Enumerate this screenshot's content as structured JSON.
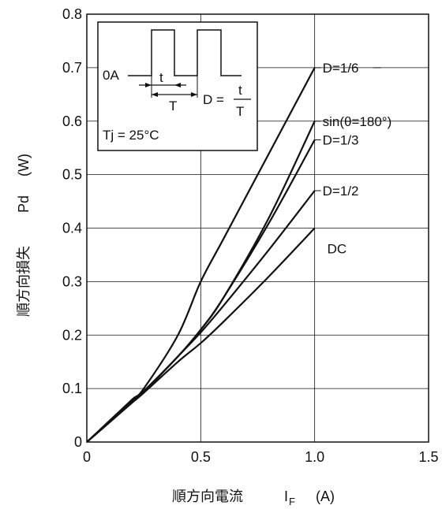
{
  "chart_data": {
    "type": "line",
    "xlabel": "順方向電流",
    "xlabel_symbol": "I",
    "xlabel_sub": "F",
    "xlabel_unit": "(A)",
    "ylabel": "順方向損失",
    "ylabel_symbol": "Pd",
    "ylabel_unit": "(W)",
    "xlim": [
      0,
      1.5
    ],
    "ylim": [
      0,
      0.8
    ],
    "x_ticks": [
      0,
      0.5,
      1.0,
      1.5
    ],
    "x_tick_labels": [
      "0",
      "0.5",
      "1.0",
      "1.5"
    ],
    "y_ticks": [
      0,
      0.1,
      0.2,
      0.3,
      0.4,
      0.5,
      0.6,
      0.7,
      0.8
    ],
    "y_tick_labels": [
      "0",
      "0.1",
      "0.2",
      "0.3",
      "0.4",
      "0.5",
      "0.6",
      "0.7",
      "0.8"
    ],
    "grid": true,
    "series": [
      {
        "name": "D=1/6",
        "x": [
          0,
          0.1,
          0.2,
          0.25,
          0.4,
          0.5,
          0.6,
          0.8,
          1.0
        ],
        "y": [
          0,
          0.04,
          0.08,
          0.1,
          0.2,
          0.3,
          0.38,
          0.54,
          0.7
        ]
      },
      {
        "name": "sin(θ=180°)",
        "x": [
          0,
          0.1,
          0.2,
          0.25,
          0.4,
          0.5,
          0.6,
          0.8,
          1.0
        ],
        "y": [
          0,
          0.038,
          0.076,
          0.095,
          0.16,
          0.21,
          0.27,
          0.42,
          0.6
        ]
      },
      {
        "name": "D=1/3",
        "x": [
          0,
          0.1,
          0.2,
          0.25,
          0.4,
          0.5,
          0.6,
          0.8,
          1.0
        ],
        "y": [
          0,
          0.038,
          0.076,
          0.095,
          0.16,
          0.21,
          0.27,
          0.41,
          0.565
        ]
      },
      {
        "name": "D=1/2",
        "x": [
          0,
          0.1,
          0.2,
          0.25,
          0.4,
          0.5,
          0.6,
          0.8,
          1.0
        ],
        "y": [
          0,
          0.037,
          0.075,
          0.093,
          0.16,
          0.205,
          0.255,
          0.36,
          0.47
        ]
      },
      {
        "name": "DC",
        "x": [
          0,
          0.1,
          0.2,
          0.25,
          0.4,
          0.5,
          0.6,
          0.8,
          1.0
        ],
        "y": [
          0,
          0.037,
          0.074,
          0.092,
          0.15,
          0.185,
          0.225,
          0.31,
          0.4
        ]
      }
    ],
    "inset": {
      "zero_label": "0A",
      "t_label": "t",
      "T_label": "T",
      "duty_formula_lhs": "D =",
      "duty_num": "t",
      "duty_den": "T",
      "tj_label": "Tj = 25°C"
    }
  }
}
